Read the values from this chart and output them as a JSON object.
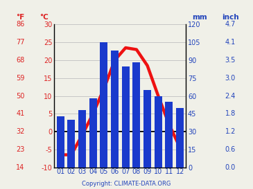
{
  "months": [
    "01",
    "02",
    "03",
    "04",
    "05",
    "06",
    "07",
    "08",
    "09",
    "10",
    "11",
    "12"
  ],
  "precip_mm": [
    43,
    40,
    48,
    58,
    105,
    98,
    85,
    88,
    65,
    60,
    55,
    50
  ],
  "temp_c": [
    -6.5,
    -6.5,
    -1.0,
    5.0,
    12.0,
    20.0,
    23.5,
    23.0,
    18.5,
    10.0,
    2.0,
    -4.5
  ],
  "bar_color": "#1a3acc",
  "line_color": "#ee1111",
  "line_width": 3.2,
  "temp_left_ticks_c": [
    -10,
    -5,
    0,
    5,
    10,
    15,
    20,
    25,
    30
  ],
  "temp_left_ticks_f": [
    14,
    23,
    32,
    41,
    50,
    59,
    68,
    77,
    86
  ],
  "precip_right_ticks_mm": [
    0,
    15,
    30,
    45,
    60,
    75,
    90,
    105,
    120
  ],
  "precip_right_ticks_inch": [
    "0.0",
    "0.6",
    "1.2",
    "1.8",
    "2.4",
    "3.0",
    "3.5",
    "4.1",
    "4.7"
  ],
  "temp_ylim": [
    -10,
    30
  ],
  "precip_ylim": [
    0,
    120
  ],
  "copyright_text": "Copyright: CLIMATE-DATA.ORG",
  "label_F": "°F",
  "label_C": "°C",
  "label_mm": "mm",
  "label_inch": "inch",
  "bg_color": "#f0f0e8",
  "grid_color": "#c0c0c0",
  "left_temp_color": "#dd2222",
  "right_precip_color": "#2244bb",
  "font_size": 7,
  "header_font_size": 7.5
}
